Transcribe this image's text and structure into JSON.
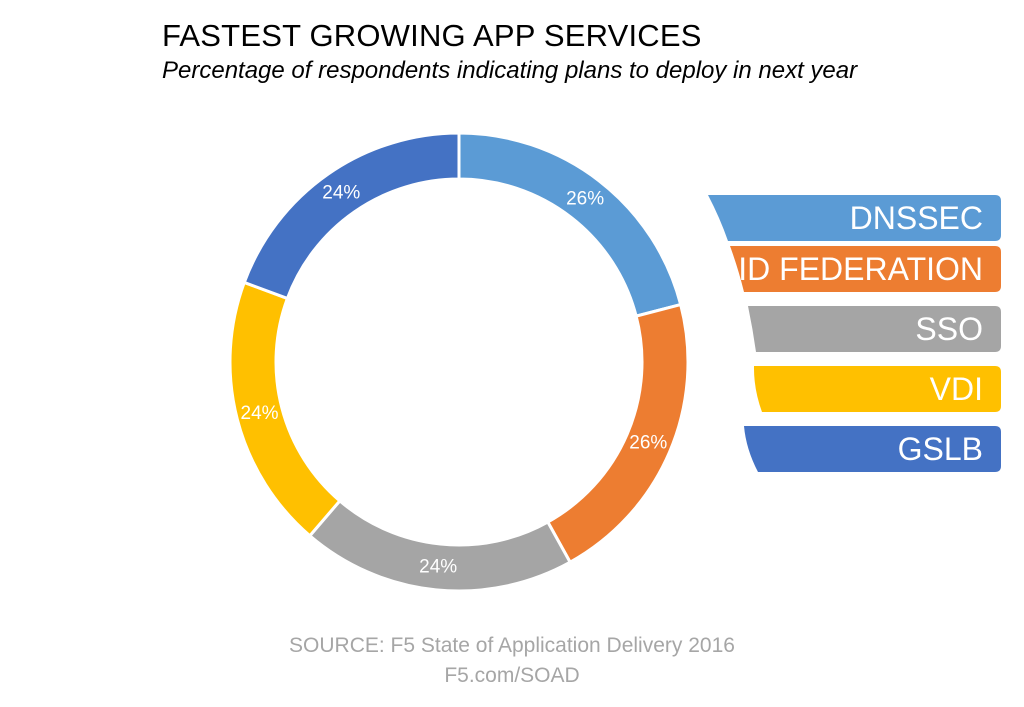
{
  "header": {
    "title": "FASTEST GROWING APP SERVICES",
    "subtitle": "Percentage of respondents indicating plans to deploy in next year"
  },
  "chart_data": {
    "type": "pie",
    "variant": "donut",
    "categories": [
      "DNSSEC",
      "ID FEDERATION",
      "SSO",
      "VDI",
      "GSLB"
    ],
    "values": [
      26,
      26,
      24,
      24,
      24
    ],
    "labels": [
      "26%",
      "26%",
      "24%",
      "24%",
      "24%"
    ],
    "colors": [
      "#5b9bd5",
      "#ed7d31",
      "#a5a5a5",
      "#ffc000",
      "#4472c4"
    ],
    "legend_position": "right"
  },
  "source": {
    "line1": "SOURCE: F5 State of Application Delivery 2016",
    "line2": "F5.com/SOAD"
  }
}
